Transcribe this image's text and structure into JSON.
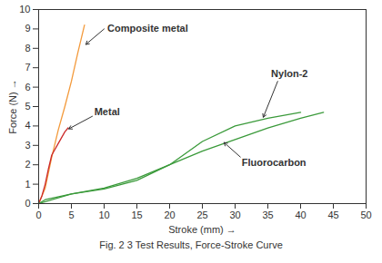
{
  "chart_data": {
    "type": "line",
    "caption": "Fig. 2 3 Test Results, Force-Stroke Curve",
    "x_label": "Stroke (mm)",
    "y_label": "Force (N)",
    "xlim": [
      0,
      50
    ],
    "ylim": [
      0,
      10
    ],
    "xticks": [
      0,
      5,
      10,
      15,
      20,
      25,
      30,
      35,
      40,
      45,
      50
    ],
    "yticks": [
      0,
      1,
      2,
      3,
      4,
      5,
      6,
      7,
      8,
      9,
      10
    ],
    "grid": false,
    "series": [
      {
        "name": "Composite metal",
        "color": "#f39a3c",
        "line_style": "solid",
        "x": [
          0,
          1,
          2,
          3,
          4,
          5,
          6,
          7
        ],
        "values": [
          0,
          0.8,
          2.4,
          3.8,
          5.0,
          6.3,
          7.8,
          9.2
        ]
      },
      {
        "name": "Metal",
        "color": "#cc2a2a",
        "line_style": "solid",
        "x": [
          0,
          0.5,
          1,
          1.5,
          2,
          3,
          4,
          4.5
        ],
        "values": [
          0,
          0.4,
          1.0,
          1.8,
          2.5,
          3.1,
          3.7,
          3.9
        ]
      },
      {
        "name": "Nylon-2",
        "color": "#3a9a3a",
        "line_style": "solid",
        "x": [
          0,
          1,
          5,
          10,
          15,
          20,
          25,
          30,
          35,
          40
        ],
        "values": [
          0,
          0.2,
          0.5,
          0.8,
          1.3,
          2.0,
          3.2,
          4.0,
          4.4,
          4.7
        ]
      },
      {
        "name": "Fluorocarbon",
        "color": "#3a9a3a",
        "line_style": "solid",
        "x": [
          0,
          5,
          10,
          15,
          20,
          25,
          30,
          35,
          40,
          43.5
        ],
        "values": [
          0,
          0.5,
          0.75,
          1.2,
          2.0,
          2.7,
          3.3,
          3.9,
          4.4,
          4.7
        ]
      }
    ],
    "annotations": [
      {
        "text": "Composite metal",
        "x": 10.5,
        "y": 9.0,
        "arrow_from": [
          10,
          9.0
        ],
        "arrow_to": [
          7.2,
          8.2
        ]
      },
      {
        "text": "Metal",
        "x": 8.5,
        "y": 4.7,
        "arrow_from": [
          8.2,
          4.5
        ],
        "arrow_to": [
          4.6,
          3.85
        ]
      },
      {
        "text": "Nylon-2",
        "x": 35.5,
        "y": 6.7,
        "arrow_from": [
          36.5,
          6.3
        ],
        "arrow_to": [
          34.3,
          4.45
        ]
      },
      {
        "text": "Fluorocarbon",
        "x": 31,
        "y": 2.1,
        "arrow_from": [
          30.8,
          2.4
        ],
        "arrow_to": [
          28.3,
          3.15
        ]
      }
    ]
  }
}
